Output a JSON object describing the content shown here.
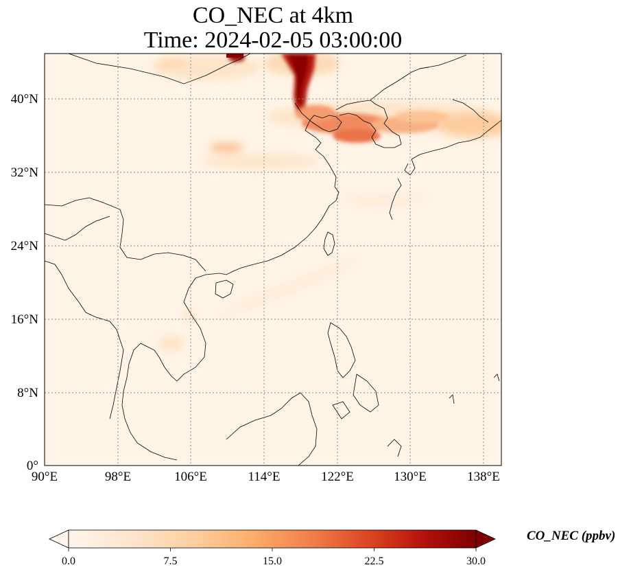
{
  "title_line1": "CO_NEC at 4km",
  "title_line2": "Time: 2024-02-05 03:00:00",
  "lon_ticks": [
    "90°E",
    "98°E",
    "106°E",
    "114°E",
    "122°E",
    "130°E",
    "138°E"
  ],
  "lat_ticks": [
    "0°",
    "8°N",
    "16°N",
    "24°N",
    "32°N",
    "40°N"
  ],
  "colorbar": {
    "label": "CO_NEC (ppbv)",
    "ticks": [
      "0.0",
      "7.5",
      "15.0",
      "22.5",
      "30.0"
    ],
    "min": 0,
    "max": 30,
    "extend": "both",
    "colors": [
      "#fff5eb",
      "#fee6ce",
      "#fdd0a2",
      "#fdae6b",
      "#fd8d3c",
      "#f16913",
      "#d94801",
      "#a63603",
      "#7f2704"
    ]
  },
  "map": {
    "extent_lon": [
      90,
      140
    ],
    "extent_lat": [
      0,
      40
    ],
    "gridlines": "dotted",
    "coastlines": true,
    "borders": true
  }
}
